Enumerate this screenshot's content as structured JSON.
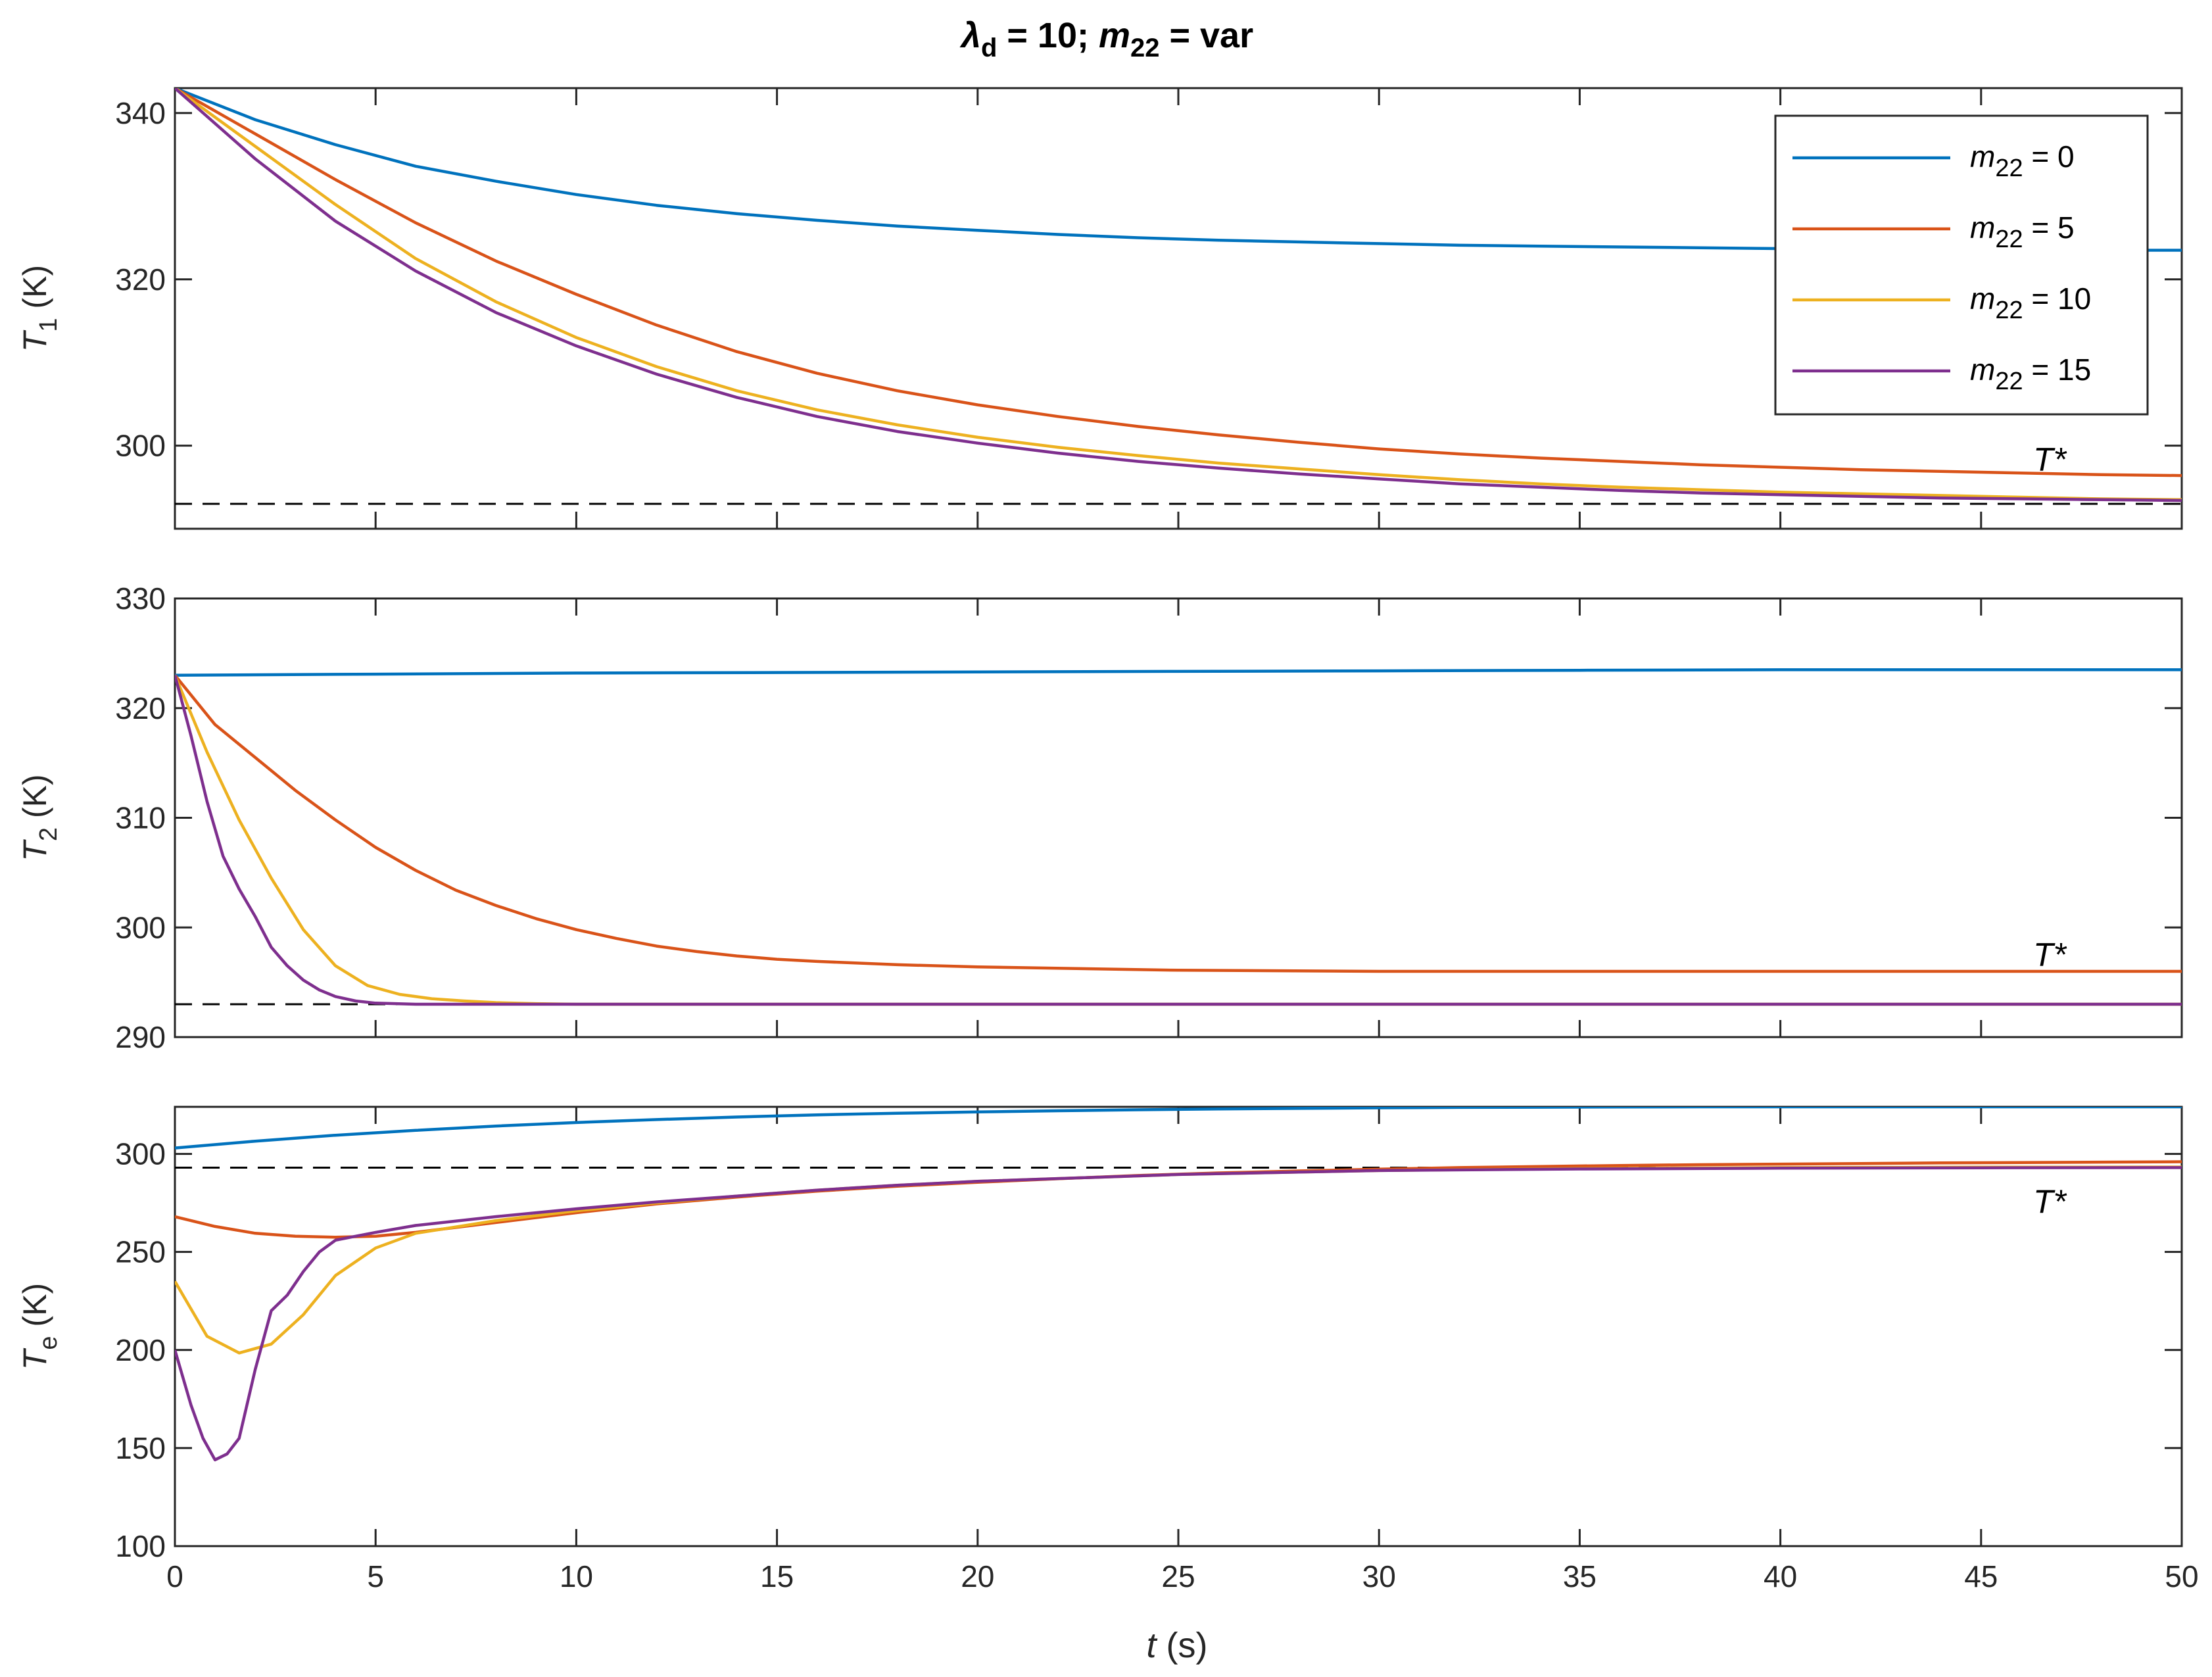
{
  "chart_data": {
    "type": "line",
    "title": {
      "lambda": "λ",
      "lambda_sub": "d",
      "mid": " = 10; ",
      "m": "m",
      "m_sub": "22",
      "tail": " = var"
    },
    "xlabel": {
      "var": "t",
      "unit": " (s)"
    },
    "xlim": [
      0,
      50
    ],
    "xticks": [
      0,
      5,
      10,
      15,
      20,
      25,
      30,
      35,
      40,
      45,
      50
    ],
    "colors": {
      "m0": "#0072BD",
      "m5": "#D95319",
      "m10": "#EDB120",
      "m15": "#7E2F8E",
      "ref": "#000000"
    },
    "legend": {
      "placement": "top-right of top panel",
      "entries": [
        {
          "key": "m0",
          "var": "m",
          "sub": "22",
          "rest": " = 0"
        },
        {
          "key": "m5",
          "var": "m",
          "sub": "22",
          "rest": " = 5"
        },
        {
          "key": "m10",
          "var": "m",
          "sub": "22",
          "rest": " = 10"
        },
        {
          "key": "m15",
          "var": "m",
          "sub": "22",
          "rest": " = 15"
        }
      ]
    },
    "panels": [
      {
        "id": "T1",
        "ylabel": {
          "var": "T",
          "sub": "1",
          "unit": " (K)"
        },
        "ylim": [
          290,
          343
        ],
        "yticks": [
          300,
          320,
          340
        ],
        "reference": {
          "value": 293,
          "label": "T*",
          "label_x": 46.3,
          "label_y": 297
        },
        "series": [
          {
            "key": "m0",
            "x": [
              0,
              2,
              4,
              6,
              8,
              10,
              12,
              14,
              16,
              18,
              20,
              22,
              24,
              26,
              28,
              30,
              32,
              34,
              36,
              38,
              40,
              42,
              44,
              46,
              48,
              50
            ],
            "y": [
              343,
              339.2,
              336.2,
              333.6,
              331.8,
              330.2,
              328.9,
              327.9,
              327.1,
              326.4,
              325.9,
              325.4,
              325.0,
              324.7,
              324.5,
              324.3,
              324.1,
              324.0,
              323.9,
              323.8,
              323.7,
              323.7,
              323.6,
              323.6,
              323.5,
              323.5
            ]
          },
          {
            "key": "m5",
            "x": [
              0,
              2,
              4,
              6,
              8,
              10,
              12,
              14,
              16,
              18,
              20,
              22,
              24,
              26,
              28,
              30,
              32,
              34,
              36,
              38,
              40,
              42,
              44,
              46,
              48,
              50
            ],
            "y": [
              343,
              337.5,
              332,
              326.8,
              322.2,
              318.2,
              314.5,
              311.3,
              308.7,
              306.6,
              304.9,
              303.5,
              302.3,
              301.3,
              300.4,
              299.6,
              299.0,
              298.5,
              298.1,
              297.7,
              297.4,
              297.1,
              296.9,
              296.7,
              296.5,
              296.4
            ]
          },
          {
            "key": "m10",
            "x": [
              0,
              2,
              4,
              6,
              8,
              10,
              12,
              14,
              16,
              18,
              20,
              22,
              24,
              26,
              28,
              30,
              32,
              34,
              36,
              38,
              40,
              42,
              44,
              46,
              48,
              50
            ],
            "y": [
              343,
              336,
              329,
              322.5,
              317.3,
              313,
              309.5,
              306.6,
              304.3,
              302.5,
              301,
              299.8,
              298.8,
              297.9,
              297.2,
              296.5,
              295.9,
              295.4,
              295.0,
              294.7,
              294.4,
              294.2,
              294.0,
              293.8,
              293.6,
              293.5
            ]
          },
          {
            "key": "m15",
            "x": [
              0,
              2,
              4,
              6,
              8,
              10,
              12,
              14,
              16,
              18,
              20,
              22,
              24,
              26,
              28,
              30,
              32,
              34,
              36,
              38,
              40,
              42,
              44,
              46,
              48,
              50
            ],
            "y": [
              343,
              334.5,
              327,
              321,
              316,
              312,
              308.6,
              305.8,
              303.5,
              301.7,
              300.3,
              299.1,
              298.1,
              297.3,
              296.6,
              296.0,
              295.4,
              295.0,
              294.6,
              294.3,
              294.1,
              293.9,
              293.7,
              293.6,
              293.5,
              293.4
            ]
          }
        ]
      },
      {
        "id": "T2",
        "ylabel": {
          "var": "T",
          "sub": "2",
          "unit": " (K)"
        },
        "ylim": [
          290,
          330
        ],
        "yticks": [
          290,
          300,
          310,
          320,
          330
        ],
        "reference": {
          "value": 293,
          "label": "T*",
          "label_x": 46.3,
          "label_y": 296.5
        },
        "series": [
          {
            "key": "m0",
            "x": [
              0,
              5,
              10,
              15,
              20,
              25,
              30,
              35,
              40,
              45,
              50
            ],
            "y": [
              323,
              323.1,
              323.2,
              323.25,
              323.3,
              323.35,
              323.4,
              323.45,
              323.5,
              323.5,
              323.5
            ]
          },
          {
            "key": "m5",
            "x": [
              0,
              1,
              2,
              3,
              4,
              5,
              6,
              7,
              8,
              9,
              10,
              11,
              12,
              13,
              14,
              15,
              16,
              18,
              20,
              25,
              30,
              35,
              40,
              45,
              50
            ],
            "y": [
              323,
              318.5,
              315.5,
              312.5,
              309.8,
              307.3,
              305.2,
              303.4,
              302.0,
              300.8,
              299.8,
              299.0,
              298.3,
              297.8,
              297.4,
              297.1,
              296.9,
              296.6,
              296.4,
              296.1,
              296.0,
              296.0,
              296.0,
              296.0,
              296.0
            ]
          },
          {
            "key": "m10",
            "x": [
              0,
              0.8,
              1.6,
              2.4,
              3.2,
              4,
              4.8,
              5.6,
              6.4,
              7.2,
              8,
              9,
              10,
              12,
              15,
              20,
              30,
              40,
              50
            ],
            "y": [
              323,
              316,
              309.8,
              304.5,
              299.8,
              296.5,
              294.7,
              293.9,
              293.5,
              293.3,
              293.15,
              293.05,
              293.0,
              293.0,
              293.0,
              293.0,
              293.0,
              293.0,
              293.0
            ]
          },
          {
            "key": "m15",
            "x": [
              0,
              0.4,
              0.8,
              1.2,
              1.6,
              2,
              2.4,
              2.8,
              3.2,
              3.6,
              4,
              4.5,
              5,
              6,
              8,
              10,
              20,
              30,
              40,
              50
            ],
            "y": [
              323,
              317.5,
              311.5,
              306.5,
              303.5,
              301.0,
              298.2,
              296.5,
              295.2,
              294.3,
              293.7,
              293.3,
              293.1,
              293.0,
              293.0,
              293.0,
              293.0,
              293.0,
              293.0,
              293.0
            ]
          }
        ]
      },
      {
        "id": "Te",
        "ylabel": {
          "var": "T",
          "sub": "e",
          "unit": " (K)"
        },
        "ylim": [
          100,
          324
        ],
        "yticks": [
          100,
          150,
          200,
          250,
          300
        ],
        "reference": {
          "value": 293,
          "label": "T*",
          "label_x": 46.3,
          "label_y": 270
        },
        "series": [
          {
            "key": "m0",
            "x": [
              0,
              2,
              4,
              6,
              8,
              10,
              12,
              14,
              16,
              18,
              20,
              22,
              24,
              26,
              28,
              30,
              32,
              34,
              36,
              38,
              40,
              42,
              44,
              46,
              48,
              50
            ],
            "y": [
              303,
              306.5,
              309.5,
              312,
              314.2,
              316,
              317.5,
              318.8,
              319.9,
              320.7,
              321.4,
              322,
              322.5,
              322.9,
              323.2,
              323.5,
              323.7,
              323.8,
              323.9,
              324,
              324,
              324,
              324,
              324,
              324,
              324
            ]
          },
          {
            "key": "m5",
            "x": [
              0,
              1,
              2,
              3,
              4,
              5,
              6,
              8,
              10,
              12,
              14,
              16,
              18,
              20,
              22,
              24,
              26,
              28,
              30,
              32,
              34,
              36,
              38,
              40,
              42,
              44,
              46,
              48,
              50
            ],
            "y": [
              268,
              263,
              259.5,
              258,
              257.5,
              258,
              260,
              265,
              270,
              274.5,
              278,
              281,
              283.5,
              285.5,
              287.3,
              289,
              290.3,
              291.3,
              292.2,
              293,
              293.6,
              294.1,
              294.5,
              294.8,
              295.1,
              295.4,
              295.6,
              295.8,
              296
            ]
          },
          {
            "key": "m10",
            "x": [
              0,
              0.8,
              1.6,
              2.4,
              3.2,
              4,
              5,
              6,
              8,
              10,
              12,
              14,
              16,
              18,
              20,
              25,
              30,
              35,
              40,
              45,
              50
            ],
            "y": [
              235,
              207,
              198.5,
              203,
              218,
              238,
              252,
              259.5,
              266,
              271,
              275,
              278.5,
              281.5,
              284,
              286,
              289.5,
              291.5,
              292.5,
              293,
              293.2,
              293.3
            ]
          },
          {
            "key": "m15",
            "x": [
              0,
              0.4,
              0.7,
              1.0,
              1.3,
              1.6,
              2.0,
              2.4,
              2.8,
              3.2,
              3.6,
              4.0,
              4.5,
              5,
              6,
              8,
              10,
              12,
              14,
              16,
              18,
              20,
              25,
              30,
              35,
              40,
              45,
              50
            ],
            "y": [
              200,
              172,
              155,
              144,
              147,
              155,
              190,
              220,
              228,
              240,
              250,
              256,
              258,
              260,
              263.5,
              268,
              272,
              275.5,
              278.5,
              281.5,
              284,
              286,
              289.5,
              291.5,
              292.3,
              292.7,
              292.9,
              293
            ]
          }
        ]
      }
    ]
  }
}
